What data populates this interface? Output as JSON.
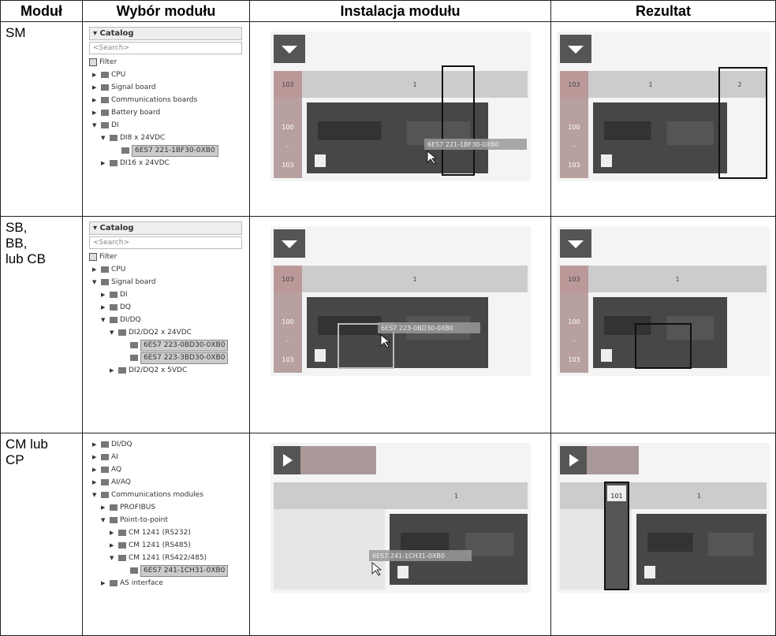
{
  "header": {
    "columns": [
      "Moduł",
      "Wybór modułu",
      "Instalacja modułu",
      "Rezultat"
    ]
  },
  "rows": [
    {
      "module": "SM",
      "catalog": {
        "title": "Catalog",
        "search": "<Search>",
        "filter": "Filter",
        "tree": [
          {
            "label": "CPU"
          },
          {
            "label": "Signal board"
          },
          {
            "label": "Communications boards"
          },
          {
            "label": "Battery board"
          },
          {
            "label": "DI",
            "children": [
              {
                "label": "DI8 x 24VDC",
                "children": [
                  {
                    "label": "6ES7 221-1BF30-0XB0",
                    "selected": true
                  }
                ]
              },
              {
                "label": "DI16 x 24VDC"
              }
            ]
          }
        ]
      },
      "install": {
        "slots": [
          "103",
          "1"
        ],
        "rack": [
          "100",
          "-",
          "103"
        ],
        "drag": "6ES7 221-1BF30-0XB0"
      },
      "result": {
        "slots": [
          "103",
          "1",
          "2"
        ],
        "rack": [
          "100",
          "-",
          "103"
        ]
      }
    },
    {
      "module": "SB,\nBB,\nlub CB",
      "catalog": {
        "title": "Catalog",
        "search": "<Search>",
        "filter": "Filter",
        "tree": [
          {
            "label": "CPU"
          },
          {
            "label": "Signal board",
            "children": [
              {
                "label": "DI"
              },
              {
                "label": "DQ"
              },
              {
                "label": "DI/DQ",
                "children": [
                  {
                    "label": "DI2/DQ2 x 24VDC",
                    "children": [
                      {
                        "label": "6ES7 223-0BD30-0XB0",
                        "selected": true
                      },
                      {
                        "label": "6ES7 223-3BD30-0XB0",
                        "selected": true
                      }
                    ]
                  },
                  {
                    "label": "DI2/DQ2 x 5VDC"
                  }
                ]
              }
            ]
          }
        ]
      },
      "install": {
        "slots": [
          "103",
          "1"
        ],
        "rack": [
          "100",
          "-",
          "103"
        ],
        "drag": "6ES7 223-0BD30-0XB0"
      },
      "result": {
        "slots": [
          "103",
          "1"
        ],
        "rack": [
          "100",
          "-",
          "103"
        ]
      }
    },
    {
      "module": "CM lub\nCP",
      "catalog": {
        "tree": [
          {
            "label": "DI/DQ"
          },
          {
            "label": "AI"
          },
          {
            "label": "AQ"
          },
          {
            "label": "AI/AQ"
          },
          {
            "label": "Communications modules",
            "children": [
              {
                "label": "PROFIBUS"
              },
              {
                "label": "Point-to-point",
                "children": [
                  {
                    "label": "CM 1241 (RS232)"
                  },
                  {
                    "label": "CM 1241 (RS485)"
                  },
                  {
                    "label": "CM 1241 (RS422/485)",
                    "children": [
                      {
                        "label": "6ES7 241-1CH31-0XB0",
                        "selected": true
                      }
                    ]
                  }
                ]
              },
              {
                "label": "AS interface"
              }
            ]
          }
        ]
      },
      "install": {
        "slots": [
          "1"
        ],
        "drag": "6ES7 241-1CH31-0XB0"
      },
      "result": {
        "slots": [
          "101",
          "1"
        ]
      }
    }
  ]
}
